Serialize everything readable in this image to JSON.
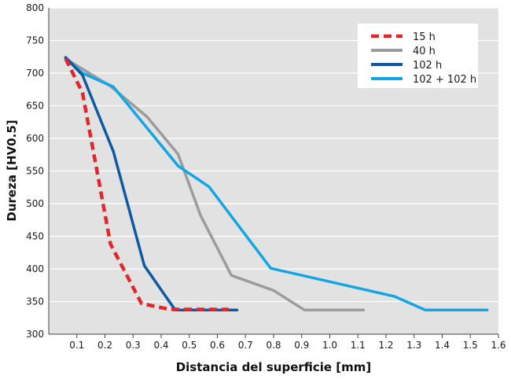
{
  "chart_data": {
    "type": "line",
    "xlabel": "Distancia del superficie [mm]",
    "ylabel": "Dureza [HV0.5]",
    "xlim": [
      0,
      1.6
    ],
    "ylim": [
      300,
      800
    ],
    "xticks": [
      "0.1",
      "0.2",
      "0.3",
      "0.4",
      "0.5",
      "0.6",
      "0.7",
      "0.8",
      "0.9",
      "1.0",
      "1.1",
      "1.2",
      "1.3",
      "1.4",
      "1.5",
      "1.6"
    ],
    "xtick_values": [
      0.1,
      0.2,
      0.3,
      0.4,
      0.5,
      0.6,
      0.7,
      0.8,
      0.9,
      1.0,
      1.1,
      1.2,
      1.3,
      1.4,
      1.5,
      1.6
    ],
    "yticks": [
      "800",
      "750",
      "700",
      "650",
      "600",
      "550",
      "500",
      "450",
      "400",
      "350",
      "300"
    ],
    "ytick_values": [
      800,
      750,
      700,
      650,
      600,
      550,
      500,
      450,
      400,
      350,
      300
    ],
    "grid": "horizontal",
    "legend_position": "top-right",
    "series": [
      {
        "name": "15 h",
        "color": "#e3262b",
        "style": "dashed",
        "x": [
          0.06,
          0.12,
          0.22,
          0.33,
          0.43,
          0.64
        ],
        "y": [
          722,
          670,
          438,
          347,
          338,
          338
        ]
      },
      {
        "name": "40 h",
        "color": "#9c9c9c",
        "style": "solid",
        "x": [
          0.06,
          0.22,
          0.35,
          0.46,
          0.54,
          0.65,
          0.8,
          0.91,
          1.12
        ],
        "y": [
          722,
          680,
          633,
          576,
          482,
          390,
          367,
          337,
          337
        ]
      },
      {
        "name": "102 h",
        "color": "#0e5aa2",
        "style": "solid",
        "x": [
          0.06,
          0.12,
          0.23,
          0.34,
          0.45,
          0.56,
          0.67
        ],
        "y": [
          724,
          697,
          580,
          405,
          337,
          337,
          337
        ]
      },
      {
        "name": "102 + 102 h",
        "color": "#13a5e5",
        "style": "solid",
        "x": [
          0.06,
          0.12,
          0.23,
          0.46,
          0.57,
          0.79,
          1.23,
          1.34,
          1.56
        ],
        "y": [
          724,
          700,
          679,
          558,
          526,
          401,
          358,
          337,
          337
        ]
      }
    ]
  }
}
